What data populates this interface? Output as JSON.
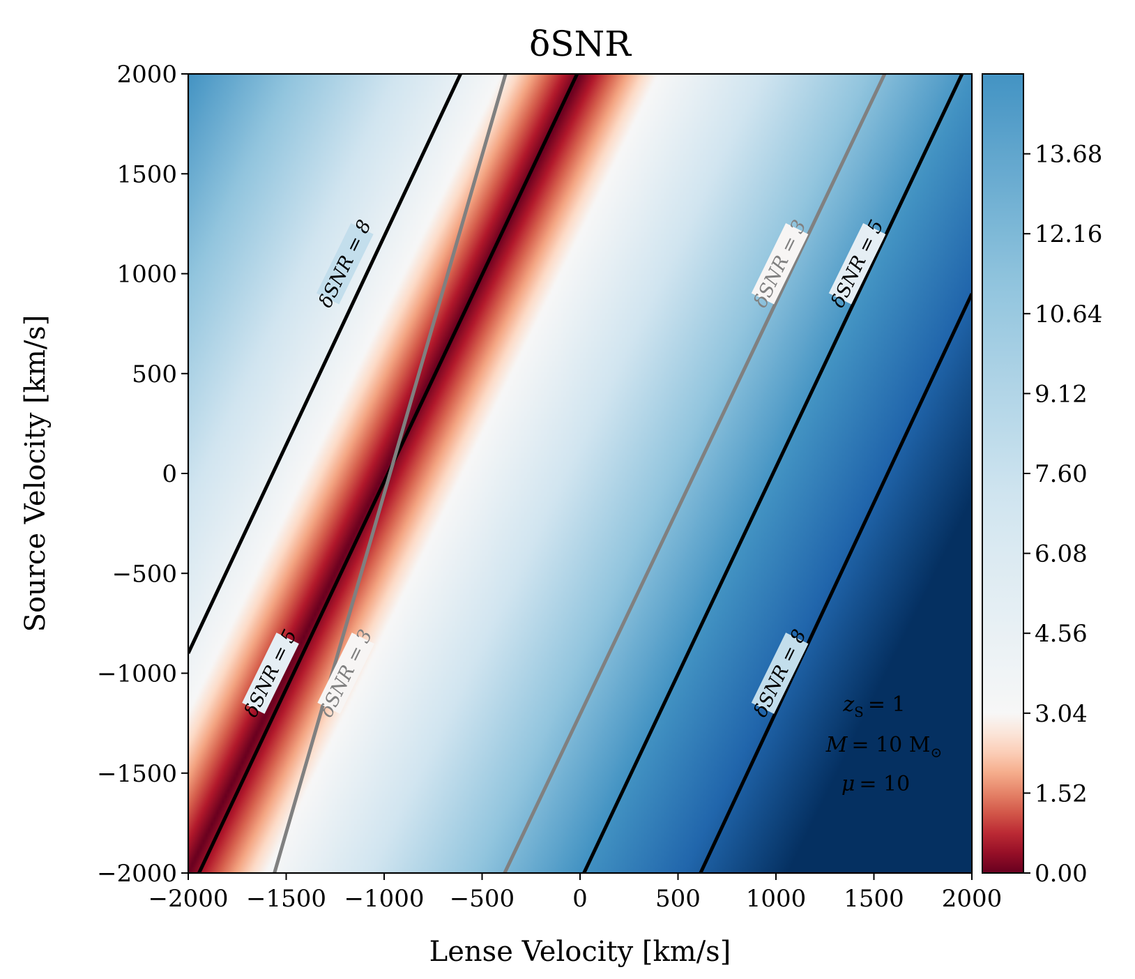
{
  "chart_data": {
    "type": "heatmap",
    "title": "δSNR",
    "xlabel": "Lense Velocity [km/s]",
    "ylabel": "Source Velocity [km/s]",
    "xlim": [
      -2000,
      2000
    ],
    "ylim": [
      -2000,
      2000
    ],
    "x_ticks": [
      -2000,
      -1500,
      -1000,
      -500,
      0,
      500,
      1000,
      1500,
      2000
    ],
    "y_ticks": [
      -2000,
      -1500,
      -1000,
      -500,
      0,
      500,
      1000,
      1500,
      2000
    ],
    "x_tick_labels": [
      "−2000",
      "−1500",
      "−1000",
      "−500",
      "0",
      "500",
      "1000",
      "1500",
      "2000"
    ],
    "y_tick_labels": [
      "−2000",
      "−1500",
      "−1000",
      "−500",
      "0",
      "500",
      "1000",
      "1500",
      "2000"
    ],
    "colormap": "RdBu",
    "colorbar": {
      "min": 0.0,
      "max": 15.2,
      "ticks": [
        0.0,
        1.52,
        3.04,
        4.56,
        6.08,
        7.6,
        9.12,
        10.64,
        12.16,
        13.68
      ],
      "tick_labels": [
        "0.00",
        "1.52",
        "3.04",
        "4.56",
        "6.08",
        "7.60",
        "9.12",
        "10.64",
        "12.16",
        "13.68"
      ],
      "midpoint": 3.04
    },
    "field_model": {
      "zero_line_slope": 2.0,
      "zero_line_y_at_x0": 2000,
      "ridge_value_max": 15.2
    },
    "contours": [
      {
        "level": 8,
        "label": "δSNR = 8",
        "color": "#000000",
        "lines": [
          [
            [
              -2000,
              -900
            ],
            [
              -610,
              2000
            ]
          ],
          [
            [
              615,
              -2000
            ],
            [
              2000,
              900
            ]
          ]
        ]
      },
      {
        "level": 5,
        "label": "δSNR = 5",
        "color": "#000000",
        "lines": [
          [
            [
              -1945,
              -2000
            ],
            [
              -15,
              2000
            ]
          ],
          [
            [
              20,
              -2000
            ],
            [
              1950,
              2000
            ]
          ]
        ]
      },
      {
        "level": 3,
        "label": "δSNR = 3",
        "color": "#808080",
        "lines": [
          [
            [
              -1560,
              -2000
            ],
            [
              -380,
              2000
            ]
          ],
          [
            [
              -385,
              -2000
            ],
            [
              1555,
              2000
            ]
          ]
        ]
      }
    ],
    "contour_labels": [
      {
        "text": "δSNR = 8",
        "x": -1200,
        "y": 1050
      },
      {
        "text": "δSNR = 8",
        "x": 1020,
        "y": -1000
      },
      {
        "text": "δSNR = 5",
        "x": -1580,
        "y": -1000
      },
      {
        "text": "δSNR = 5",
        "x": 1415,
        "y": 1050
      },
      {
        "text": "δSNR = 3",
        "x": -1195,
        "y": -1000
      },
      {
        "text": "δSNR = 3",
        "x": 1020,
        "y": 1050
      }
    ],
    "annotations": [
      "z",
      "S",
      "= 1",
      "M",
      "= 10 M",
      "⊙",
      "μ",
      "= 10"
    ]
  }
}
